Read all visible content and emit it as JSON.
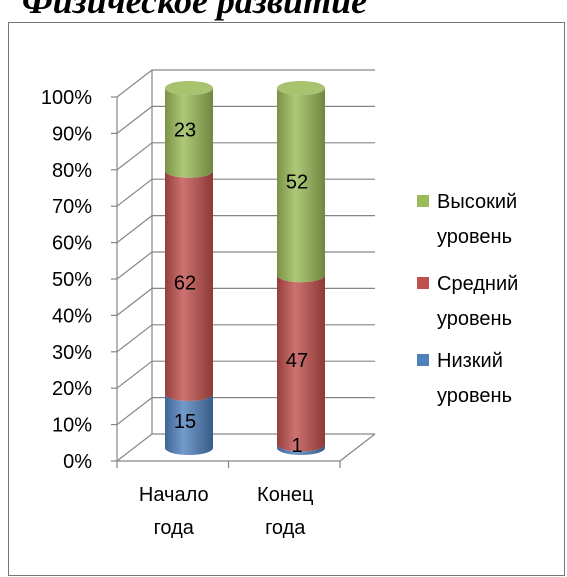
{
  "chart_data": {
    "type": "bar",
    "variant": "100% stacked 3D cylinder column",
    "title": "Физическое развитие",
    "categories": [
      "Начало года",
      "Конец года"
    ],
    "series": [
      {
        "name": "Низкий уровень",
        "values": [
          15,
          1
        ],
        "color": "#4F81BD"
      },
      {
        "name": "Средний уровень",
        "values": [
          62,
          47
        ],
        "color": "#C0504D"
      },
      {
        "name": "Высокий уровень",
        "values": [
          23,
          52
        ],
        "color": "#9BBB59"
      }
    ],
    "y_ticks": [
      "0%",
      "10%",
      "20%",
      "30%",
      "40%",
      "50%",
      "60%",
      "70%",
      "80%",
      "90%",
      "100%"
    ],
    "ylim": [
      0,
      100
    ],
    "xlabel": "",
    "ylabel": "",
    "grid": true,
    "legend": "right",
    "data_labels": true
  }
}
